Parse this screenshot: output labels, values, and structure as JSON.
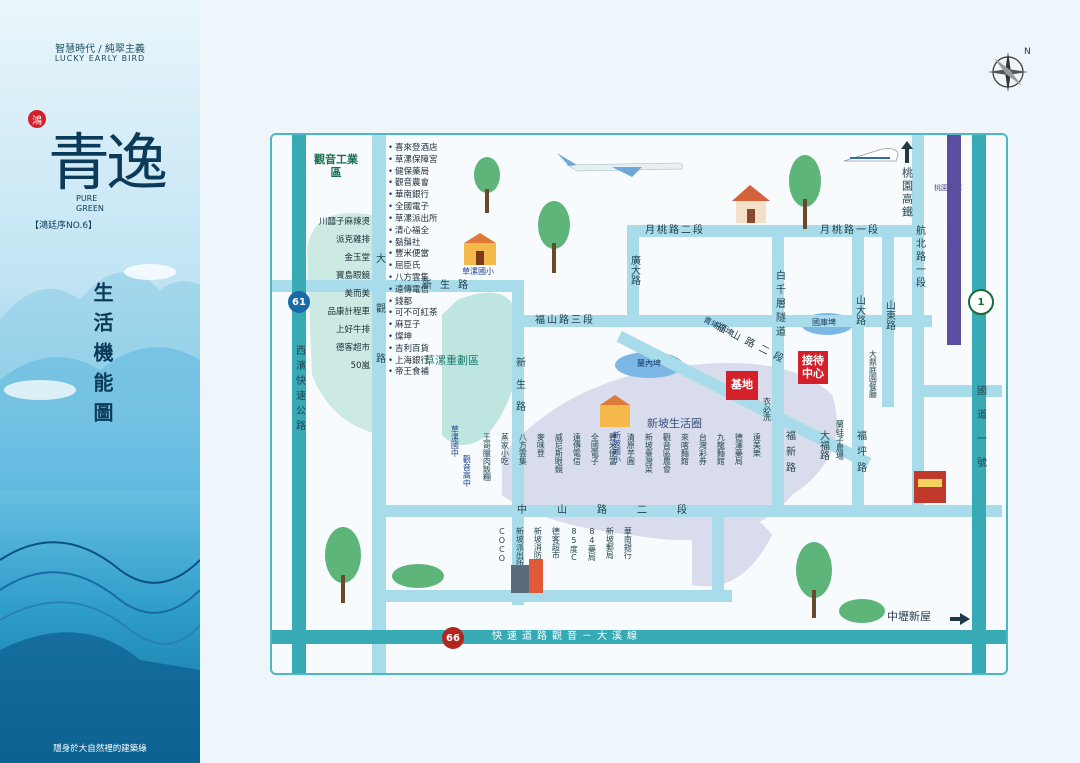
{
  "sidebar": {
    "tagline": "智慧時代 / 純翠主義",
    "tagline_en": "LUCKY EARLY BIRD",
    "logo_small": "鴻",
    "logo_big": "青逸",
    "pure": "PURE",
    "green": "GREEN",
    "series": "【鴻廷序NO.6】",
    "title": "生活機能圖",
    "footer": "隱身於大自然裡的建築綠"
  },
  "map": {
    "areas": {
      "industrial": "觀音工業區",
      "redev": "草漯重劃區",
      "xinpo": "新坡生活圈",
      "pond": "蘭內埤",
      "park": "國庫埤",
      "pond2": "青埔仔埤"
    },
    "roads": {
      "xinsheng": "新生路",
      "xinsheng_v": "新生路",
      "fushan3": "福山路三段",
      "fushan2": "福山路二段",
      "yuetao2": "月桃路二段",
      "yuetao1": "月桃路一段",
      "zhongshan2": "中山路二段",
      "guangda": "廣大路",
      "baiqian": "白千層隧道",
      "shanda": "山大路",
      "shandong": "山東路",
      "hangbei": "航北路一段",
      "qingpu": "青埔路",
      "fuxin": "福新路",
      "fuping": "福坪路",
      "dafu": "大福路",
      "xibin": "西濱快速公路",
      "dayuan": "大觀路",
      "guodao": "國道一號",
      "kuaisu": "快速道路觀音－大溪線",
      "taoyuan_hsr": "桃園高鐵",
      "zhongli": "中壢新屋",
      "metro": "桃園捷運"
    },
    "shields": {
      "r61": "61",
      "r66": "66",
      "r1": "1"
    },
    "markers": {
      "site": "基地",
      "reception": "接待中心"
    },
    "poi_left": [
      "川囍子麻辣燙",
      "派克雞排",
      "金玉堂",
      "寶島眼鏡",
      "美而美",
      "品康計程車",
      "上好牛排",
      "德客超市",
      "50嵐"
    ],
    "poi_dayuan": [
      "喜來登酒店",
      "草漯保障宮",
      "健保藥局",
      "觀音農會",
      "華南銀行",
      "全國電子",
      "草漯派出所",
      "清心福全",
      "鬍鬚社",
      "豐米便當",
      "屈臣氏",
      "八方雲集",
      "遠傳電信",
      "錢都",
      "可不可紅茶",
      "麻豆子",
      "燦坤",
      "吉利百貨",
      "上海銀行",
      "帝王食補"
    ],
    "schools": {
      "caolu_elem": "草漯國小",
      "caolu_middle": "草漯國中",
      "guanyin_high": "觀音高中",
      "xinpo_elem": "新坡國小"
    },
    "poi_zhongshan_top": [
      "王哥臘肉飯糰",
      "蒸家小吃",
      "八方雲集",
      "麥味登",
      "威尼斯眼鏡",
      "遠傳電信",
      "全國電子",
      "豐米便當",
      "清原芋圓",
      "新坡臺灣菜",
      "觀音區農會",
      "來喀麵館",
      "台灣彩券",
      "九龍麵館",
      "德澤藥局",
      "遠美樂"
    ],
    "poi_zhongshan_bottom": [
      "COCO",
      "新坡派出所",
      "新坡消防局",
      "德客超市",
      "85度C",
      "84藥局",
      "新坡郵局",
      "華南銀行"
    ],
    "poi_right": [
      "衣必洗",
      "蘭蛙子農場",
      "大鼎庭園餐廳"
    ]
  }
}
